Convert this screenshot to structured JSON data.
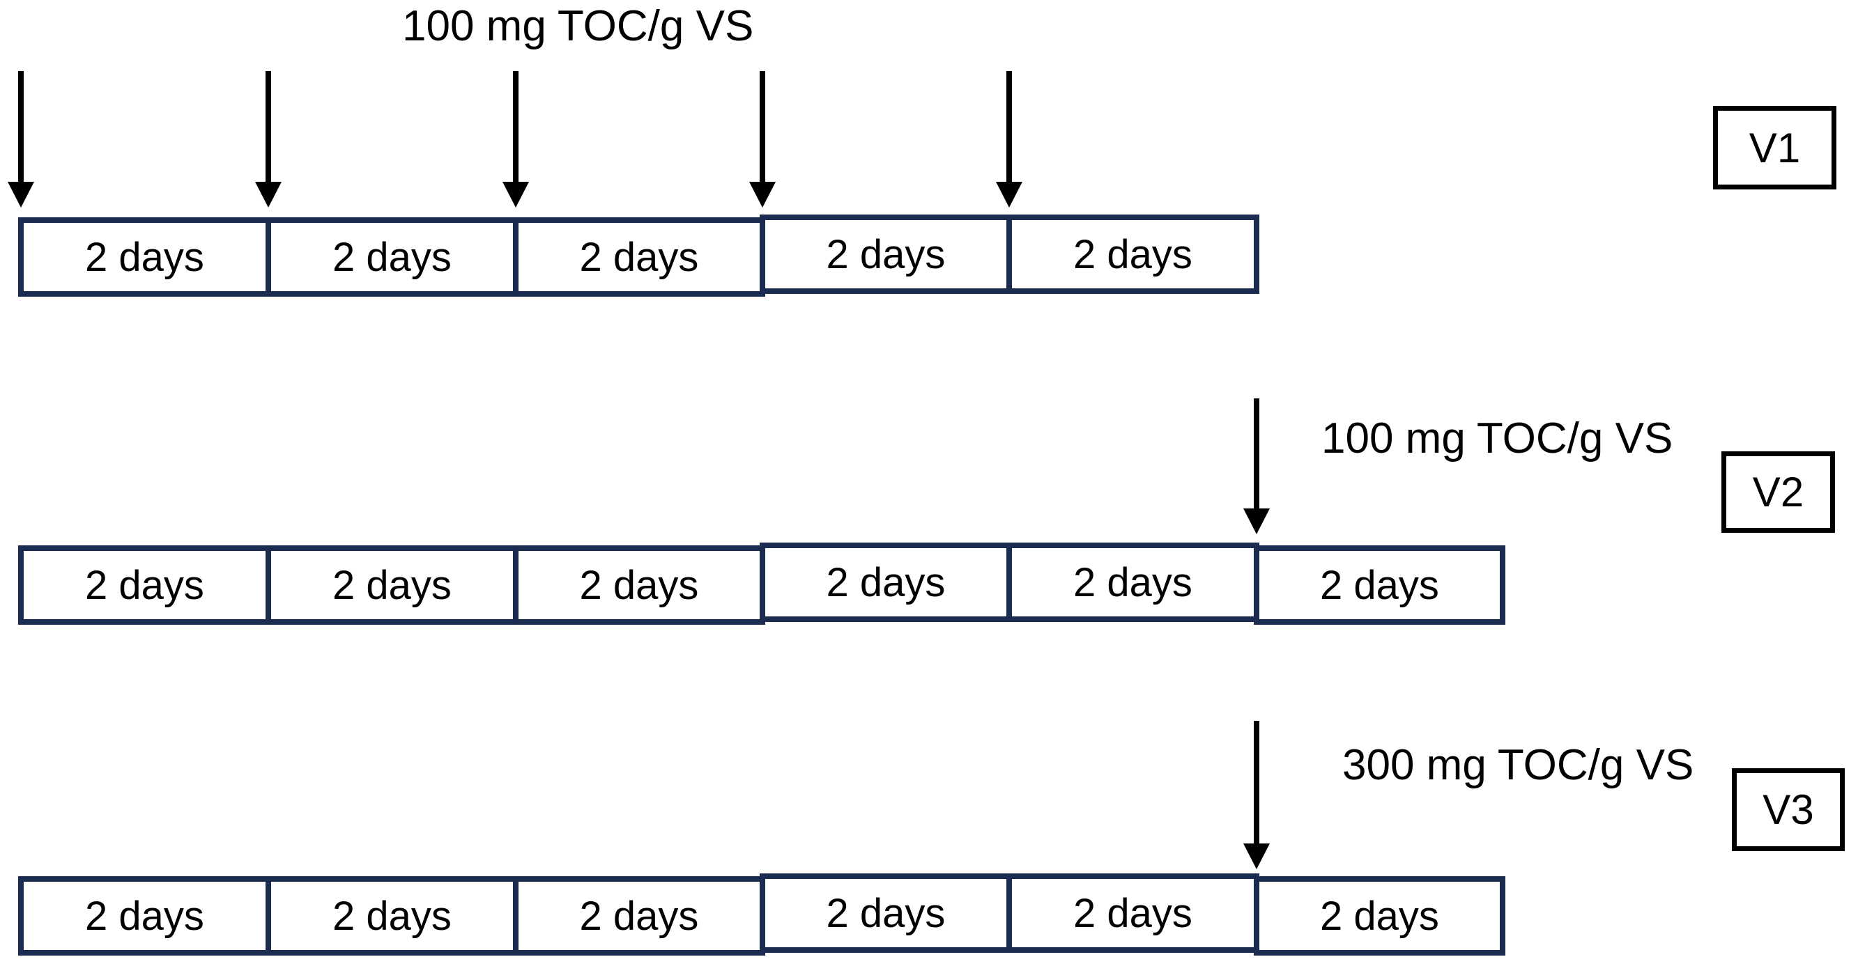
{
  "colors": {
    "segment_border": "#1B2C50",
    "variant_border": "#000000",
    "arrow": "#000000",
    "text": "#000000",
    "background": "#FFFFFF"
  },
  "rows": [
    {
      "variant": "V1",
      "dose_label": "100 mg TOC/g VS",
      "arrow_count": 5,
      "segments": [
        "2 days",
        "2 days",
        "2 days",
        "2 days",
        "2 days"
      ]
    },
    {
      "variant": "V2",
      "dose_label": "100 mg TOC/g VS",
      "arrow_count": 1,
      "segments": [
        "2 days",
        "2 days",
        "2 days",
        "2 days",
        "2 days",
        "2 days"
      ]
    },
    {
      "variant": "V3",
      "dose_label": "300 mg TOC/g VS",
      "arrow_count": 1,
      "segments": [
        "2 days",
        "2 days",
        "2 days",
        "2 days",
        "2 days",
        "2 days"
      ]
    }
  ]
}
